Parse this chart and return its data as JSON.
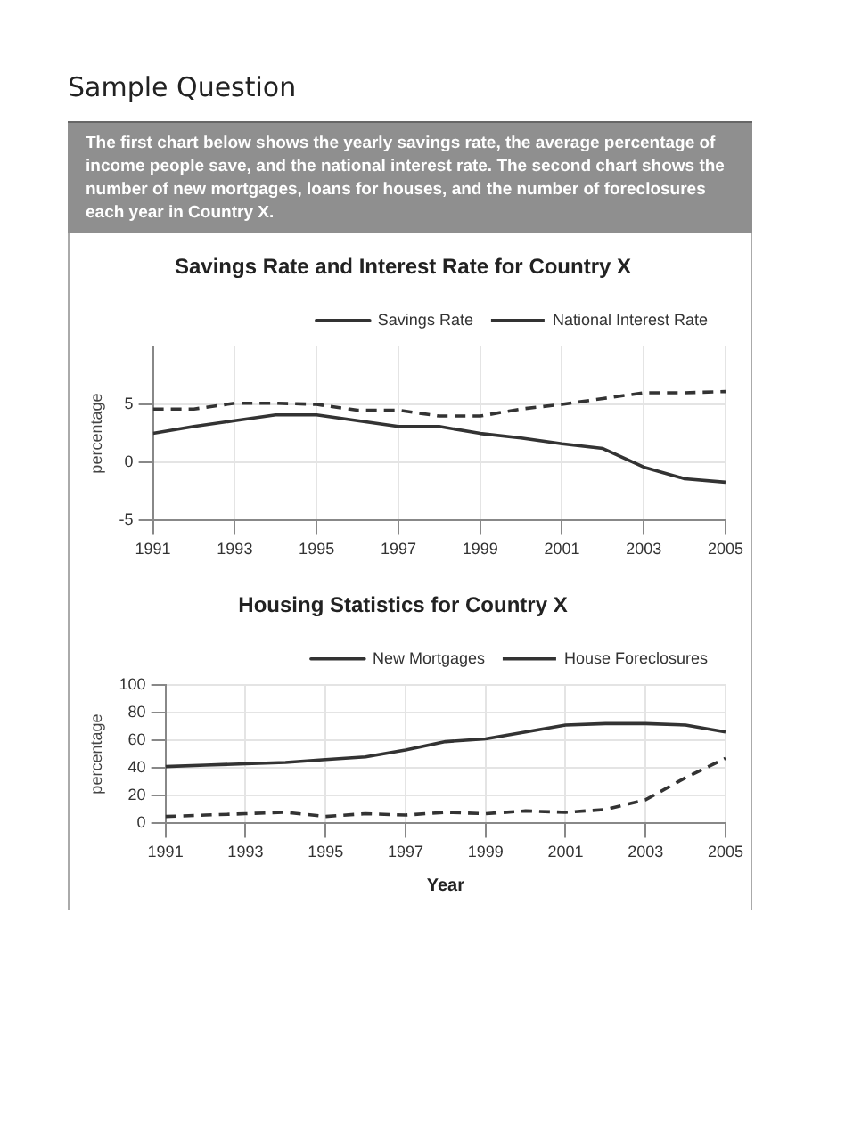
{
  "chart_data": [
    {
      "type": "line",
      "title": "Savings Rate and Interest Rate for Country X",
      "ylabel": "percentage",
      "annotations": [
        "Sample Question",
        "The first chart below shows the yearly savings rate, the average percentage of income people save, and the national interest rate. The second chart shows the number of new mortgages, loans for houses, and the number of foreclosures each year in Country X."
      ],
      "x": [
        1991,
        1992,
        1993,
        1994,
        1995,
        1996,
        1997,
        1998,
        1999,
        2000,
        2001,
        2002,
        2003,
        2004,
        2005
      ],
      "series": [
        {
          "name": "Savings Rate",
          "color": "#333333",
          "line_style": "solid",
          "values": [
            2.5,
            3.1,
            3.6,
            4.1,
            4.1,
            3.6,
            3.1,
            3.1,
            2.5,
            2.1,
            1.6,
            1.2,
            -0.4,
            -1.4,
            -1.7
          ]
        },
        {
          "name": "National Interest Rate",
          "color": "#333333",
          "line_style": "dashed",
          "values": [
            4.6,
            4.6,
            5.1,
            5.1,
            5.0,
            4.5,
            4.5,
            4.0,
            4.0,
            4.6,
            5.0,
            5.5,
            6.0,
            6.0,
            6.1
          ]
        }
      ],
      "xlim": [
        1991,
        2005
      ],
      "xticks": [
        1991,
        1993,
        1995,
        1997,
        1999,
        2001,
        2003,
        2005
      ],
      "ylim": [
        -5,
        10
      ],
      "yticks": [
        -5,
        0,
        5
      ],
      "grid": true,
      "legend": "top right",
      "marker": "none"
    },
    {
      "type": "line",
      "title": "Housing Statistics for Country X",
      "xlabel": "Year",
      "ylabel": "percentage",
      "x": [
        1991,
        1992,
        1993,
        1994,
        1995,
        1996,
        1997,
        1998,
        1999,
        2000,
        2001,
        2002,
        2003,
        2004,
        2005
      ],
      "series": [
        {
          "name": "New Mortgages",
          "color": "#333333",
          "line_style": "solid",
          "values": [
            41,
            42,
            43,
            44,
            46,
            48,
            53,
            59,
            61,
            66,
            71,
            72,
            72,
            71,
            66
          ]
        },
        {
          "name": "House Foreclosures",
          "color": "#333333",
          "line_style": "dashed",
          "values": [
            5,
            6,
            7,
            8,
            5,
            7,
            6,
            8,
            7,
            9,
            8,
            10,
            17,
            33,
            47
          ]
        }
      ],
      "xlim": [
        1991,
        2005
      ],
      "xticks": [
        1991,
        1993,
        1995,
        1997,
        1999,
        2001,
        2003,
        2005
      ],
      "ylim": [
        0,
        100
      ],
      "yticks": [
        0,
        20,
        40,
        60,
        80,
        100
      ],
      "grid": true,
      "legend": "top right",
      "marker": "none"
    }
  ]
}
